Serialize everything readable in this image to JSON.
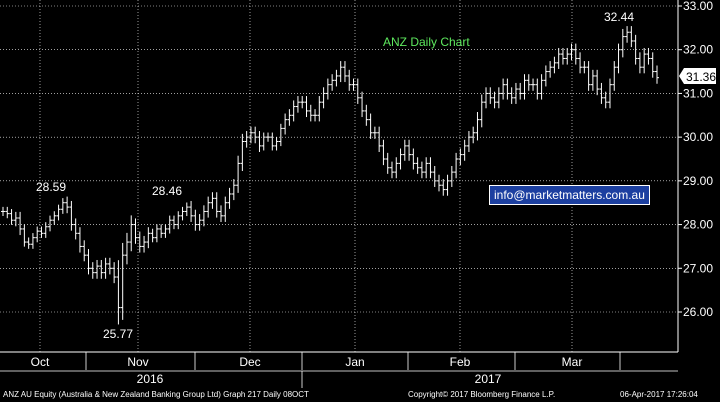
{
  "chart_data": {
    "type": "bar",
    "ohlc": true,
    "title": "ANZ Daily Chart",
    "y_ticks": [
      "33.00",
      "32.00",
      "31.00",
      "30.00",
      "29.00",
      "28.00",
      "27.00",
      "26.00"
    ],
    "ylim": [
      25.2,
      33.15
    ],
    "month_labels": [
      "Oct",
      "Nov",
      "Dec",
      "Jan",
      "Feb",
      "Mar"
    ],
    "year_labels": [
      "2016",
      "2017"
    ],
    "last_price": "31.36",
    "annotations": [
      "28.59",
      "28.46",
      "25.77",
      "32.44"
    ],
    "closes": [
      28.3,
      28.25,
      28.1,
      28.15,
      27.9,
      27.6,
      27.55,
      27.7,
      27.85,
      27.8,
      27.95,
      28.1,
      28.2,
      28.35,
      28.5,
      28.4,
      28.0,
      27.8,
      27.5,
      27.3,
      27.0,
      26.9,
      27.05,
      26.9,
      27.1,
      27.0,
      26.8,
      26.1,
      27.3,
      27.6,
      28.0,
      27.7,
      27.5,
      27.6,
      27.8,
      27.7,
      27.9,
      27.8,
      27.9,
      28.1,
      28.0,
      28.2,
      28.3,
      28.4,
      28.2,
      28.0,
      28.1,
      28.3,
      28.5,
      28.6,
      28.3,
      28.2,
      28.5,
      28.7,
      28.9,
      29.4,
      29.9,
      30.0,
      30.1,
      30.0,
      29.8,
      30.0,
      30.0,
      29.8,
      29.9,
      30.2,
      30.4,
      30.5,
      30.7,
      30.8,
      30.8,
      30.6,
      30.5,
      30.5,
      30.8,
      31.0,
      31.2,
      31.3,
      31.4,
      31.6,
      31.4,
      31.2,
      31.2,
      30.9,
      30.6,
      30.4,
      30.1,
      30.1,
      29.8,
      29.5,
      29.3,
      29.2,
      29.4,
      29.6,
      29.8,
      29.6,
      29.4,
      29.3,
      29.2,
      29.4,
      29.2,
      29.0,
      28.9,
      28.8,
      29.0,
      29.2,
      29.5,
      29.6,
      29.8,
      30.0,
      30.1,
      30.4,
      30.8,
      31.0,
      30.9,
      30.8,
      31.0,
      31.2,
      31.0,
      30.9,
      31.1,
      31.0,
      31.3,
      31.2,
      31.2,
      31.0,
      31.3,
      31.5,
      31.6,
      31.7,
      31.9,
      31.8,
      31.9,
      32.0,
      31.8,
      31.6,
      31.6,
      31.2,
      31.4,
      31.1,
      30.9,
      30.8,
      31.2,
      31.6,
      32.0,
      32.3,
      32.4,
      32.2,
      31.8,
      31.6,
      31.9,
      31.8,
      31.5,
      31.36
    ],
    "ranges": [
      0.3,
      0.3,
      0.3,
      0.4,
      0.4,
      0.3,
      0.3,
      0.3,
      0.3,
      0.3,
      0.3,
      0.3,
      0.3,
      0.3,
      0.3,
      0.4,
      0.4,
      0.4,
      0.4,
      0.4,
      0.4,
      0.4,
      0.4,
      0.4,
      0.4,
      0.4,
      0.4,
      1.1,
      0.8,
      0.6,
      0.6,
      0.4,
      0.4,
      0.4,
      0.4,
      0.3,
      0.3,
      0.3,
      0.3,
      0.3,
      0.3,
      0.3,
      0.3,
      0.3,
      0.4,
      0.4,
      0.4,
      0.4,
      0.4,
      0.4,
      0.4,
      0.4,
      0.4,
      0.4,
      0.4,
      0.5,
      0.5,
      0.4,
      0.4,
      0.4,
      0.4,
      0.3,
      0.3,
      0.3,
      0.3,
      0.3,
      0.4,
      0.4,
      0.4,
      0.4,
      0.4,
      0.4,
      0.4,
      0.4,
      0.4,
      0.4,
      0.4,
      0.4,
      0.4,
      0.4,
      0.4,
      0.4,
      0.4,
      0.4,
      0.4,
      0.4,
      0.4,
      0.4,
      0.4,
      0.4,
      0.4,
      0.4,
      0.4,
      0.4,
      0.4,
      0.4,
      0.4,
      0.4,
      0.4,
      0.4,
      0.4,
      0.4,
      0.4,
      0.4,
      0.4,
      0.4,
      0.4,
      0.4,
      0.4,
      0.4,
      0.4,
      0.5,
      0.5,
      0.4,
      0.4,
      0.4,
      0.4,
      0.4,
      0.4,
      0.4,
      0.4,
      0.4,
      0.4,
      0.4,
      0.4,
      0.4,
      0.4,
      0.4,
      0.4,
      0.4,
      0.4,
      0.4,
      0.4,
      0.4,
      0.4,
      0.4,
      0.4,
      0.4,
      0.4,
      0.4,
      0.4,
      0.4,
      0.4,
      0.4,
      0.4,
      0.5,
      0.4,
      0.4,
      0.4,
      0.4,
      0.4,
      0.4,
      0.4,
      0.4
    ]
  },
  "footer": {
    "left": "ANZ AU Equity (Australia & New Zealand Banking Group Ltd) Graph 217  Daily 08OCT",
    "middle": "Copyright© 2017 Bloomberg Finance L.P.",
    "right": "06-Apr-2017 17:26:04"
  },
  "watermark": "info@marketmatters.com.au",
  "colors": {
    "bar": "#ffffff",
    "grid": "#ffffff",
    "title": "#5ee85e",
    "email_box": "#1c3fa0",
    "price_tag_bg": "#ffffff",
    "price_tag_text": "#000000"
  }
}
